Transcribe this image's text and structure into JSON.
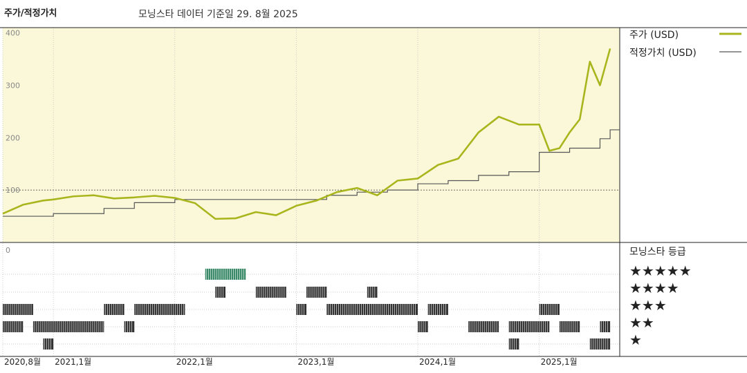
{
  "header": {
    "title": "주가/적정가치",
    "subtitle": "모닝스타 데이터 기준일 29. 8월 2025"
  },
  "colors": {
    "price_line": "#a9b51c",
    "fair_value_line": "#555555",
    "plot_background": "#fbf8d9",
    "rating_bar": "#333333",
    "rating_bar_highlight": "#3a8a6a"
  },
  "legend": {
    "price_label": "주가 (USD)",
    "fair_value_label": "적정가치 (USD)",
    "rating_title": "모닝스타 등급"
  },
  "rating_rows": [
    "★★★★★",
    "★★★★",
    "★★★",
    "★★",
    "★"
  ],
  "chart_data": {
    "type": "line",
    "y_ticks": [
      "400",
      "300",
      "200",
      "100"
    ],
    "lower_zero_label": "0",
    "x_ticks": [
      "2020,8월",
      "2021,1월",
      "2022,1월",
      "2023,1월",
      "2024,1월",
      "2025,1월"
    ],
    "x_tick_dates": [
      "2020-08",
      "2021-01",
      "2022-01",
      "2023-01",
      "2024-01",
      "2025-01"
    ],
    "x_range": [
      "2020-08",
      "2025-08"
    ],
    "ylim": [
      0,
      410
    ],
    "reference_line": 100,
    "series": [
      {
        "name": "주가 (USD)",
        "x": [
          "2020-08",
          "2020-10",
          "2020-12",
          "2021-01",
          "2021-03",
          "2021-05",
          "2021-07",
          "2021-09",
          "2021-11",
          "2022-01",
          "2022-03",
          "2022-05",
          "2022-07",
          "2022-09",
          "2022-11",
          "2023-01",
          "2023-03",
          "2023-05",
          "2023-07",
          "2023-09",
          "2023-11",
          "2024-01",
          "2024-03",
          "2024-05",
          "2024-07",
          "2024-09",
          "2024-11",
          "2025-01",
          "2025-02",
          "2025-03",
          "2025-04",
          "2025-05",
          "2025-06",
          "2025-07",
          "2025-08"
        ],
        "values": [
          55,
          72,
          80,
          82,
          88,
          90,
          84,
          86,
          89,
          85,
          75,
          45,
          46,
          58,
          52,
          70,
          80,
          96,
          104,
          90,
          118,
          122,
          148,
          160,
          210,
          240,
          225,
          225,
          175,
          180,
          210,
          235,
          345,
          300,
          370
        ]
      },
      {
        "name": "적정가치 (USD)",
        "x": [
          "2020-08",
          "2021-01",
          "2021-06",
          "2021-09",
          "2022-01",
          "2023-01",
          "2023-04",
          "2023-07",
          "2023-10",
          "2024-01",
          "2024-04",
          "2024-07",
          "2024-10",
          "2025-01",
          "2025-04",
          "2025-07",
          "2025-08"
        ],
        "values": [
          50,
          55,
          65,
          76,
          82,
          82,
          90,
          96,
          100,
          112,
          118,
          128,
          135,
          172,
          180,
          198,
          215
        ]
      }
    ],
    "rating_segments": [
      {
        "stars": 5,
        "start": "2022-04",
        "end": "2022-08",
        "highlight": true
      },
      {
        "stars": 4,
        "start": "2022-05",
        "end": "2022-06"
      },
      {
        "stars": 4,
        "start": "2022-09",
        "end": "2022-12"
      },
      {
        "stars": 4,
        "start": "2023-02",
        "end": "2023-04"
      },
      {
        "stars": 4,
        "start": "2023-08",
        "end": "2023-09"
      },
      {
        "stars": 3,
        "start": "2020-08",
        "end": "2020-11"
      },
      {
        "stars": 3,
        "start": "2021-06",
        "end": "2021-08"
      },
      {
        "stars": 3,
        "start": "2021-09",
        "end": "2022-02"
      },
      {
        "stars": 3,
        "start": "2023-01",
        "end": "2023-02"
      },
      {
        "stars": 3,
        "start": "2023-04",
        "end": "2024-01"
      },
      {
        "stars": 3,
        "start": "2024-02",
        "end": "2024-04"
      },
      {
        "stars": 3,
        "start": "2025-01",
        "end": "2025-03"
      },
      {
        "stars": 2,
        "start": "2020-08",
        "end": "2020-10"
      },
      {
        "stars": 2,
        "start": "2020-11",
        "end": "2021-06"
      },
      {
        "stars": 2,
        "start": "2021-08",
        "end": "2021-09"
      },
      {
        "stars": 2,
        "start": "2024-01",
        "end": "2024-02"
      },
      {
        "stars": 2,
        "start": "2024-06",
        "end": "2024-09"
      },
      {
        "stars": 2,
        "start": "2024-10",
        "end": "2025-02"
      },
      {
        "stars": 2,
        "start": "2025-03",
        "end": "2025-05"
      },
      {
        "stars": 2,
        "start": "2025-07",
        "end": "2025-08"
      },
      {
        "stars": 1,
        "start": "2020-12",
        "end": "2021-01"
      },
      {
        "stars": 1,
        "start": "2024-10",
        "end": "2024-11"
      },
      {
        "stars": 1,
        "start": "2025-06",
        "end": "2025-08"
      }
    ]
  }
}
